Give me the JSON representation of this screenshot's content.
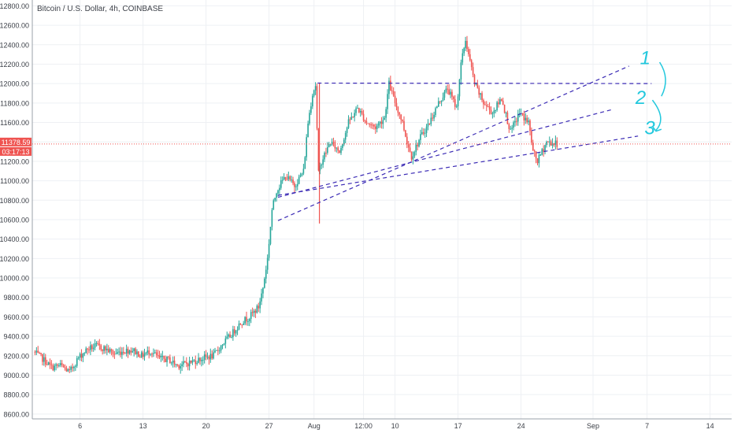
{
  "chart_data": {
    "type": "candlestick",
    "title": "Bitcoin / U.S. Dollar, 4h, COINBASE",
    "price_axis": {
      "ylim": [
        8550,
        12860
      ],
      "ticks": [
        "8600.00",
        "8800.00",
        "9000.00",
        "9200.00",
        "9400.00",
        "9600.00",
        "9800.00",
        "10000.00",
        "10200.00",
        "10400.00",
        "10600.00",
        "10800.00",
        "11000.00",
        "11200.00",
        "11400.00",
        "11600.00",
        "11800.00",
        "12000.00",
        "12200.00",
        "12400.00",
        "12600.00",
        "12800.00"
      ],
      "current_price": "11378.59",
      "countdown": "03:17:13"
    },
    "time_axis": {
      "ticks": [
        {
          "label": "6",
          "day": 6
        },
        {
          "label": "13",
          "day": 13
        },
        {
          "label": "20",
          "day": 20
        },
        {
          "label": "27",
          "day": 27
        },
        {
          "label": "Aug",
          "day": 32
        },
        {
          "label": "12:00",
          "day": 37.5
        },
        {
          "label": "10",
          "day": 41
        },
        {
          "label": "17",
          "day": 48
        },
        {
          "label": "24",
          "day": 55
        },
        {
          "label": "Sep",
          "day": 63
        },
        {
          "label": "7",
          "day": 69
        },
        {
          "label": "14",
          "day": 76
        }
      ],
      "xlim_days": [
        0.7,
        78.4
      ]
    },
    "price_path": [
      [
        1,
        9240
      ],
      [
        2,
        9170
      ],
      [
        3,
        9080
      ],
      [
        4,
        9100
      ],
      [
        5,
        9030
      ],
      [
        6,
        9180
      ],
      [
        7,
        9270
      ],
      [
        8,
        9300
      ],
      [
        9,
        9270
      ],
      [
        10,
        9220
      ],
      [
        11,
        9250
      ],
      [
        12,
        9260
      ],
      [
        13,
        9200
      ],
      [
        14,
        9250
      ],
      [
        15,
        9170
      ],
      [
        16,
        9160
      ],
      [
        17,
        9100
      ],
      [
        18,
        9120
      ],
      [
        19,
        9150
      ],
      [
        20,
        9180
      ],
      [
        21,
        9200
      ],
      [
        22,
        9320
      ],
      [
        23,
        9420
      ],
      [
        24,
        9540
      ],
      [
        25,
        9600
      ],
      [
        26,
        9700
      ],
      [
        26.5,
        9900
      ],
      [
        27,
        10200
      ],
      [
        27.5,
        10700
      ],
      [
        28,
        10900
      ],
      [
        29,
        11050
      ],
      [
        30,
        10950
      ],
      [
        31,
        11100
      ],
      [
        31.5,
        11600
      ],
      [
        32,
        11900
      ],
      [
        32.4,
        12000
      ],
      [
        32.6,
        11050
      ],
      [
        33,
        11200
      ],
      [
        34,
        11400
      ],
      [
        35,
        11300
      ],
      [
        36,
        11600
      ],
      [
        37,
        11750
      ],
      [
        38,
        11600
      ],
      [
        39,
        11550
      ],
      [
        40,
        11650
      ],
      [
        40.5,
        12000
      ],
      [
        41,
        11850
      ],
      [
        42,
        11600
      ],
      [
        42.5,
        11400
      ],
      [
        43,
        11250
      ],
      [
        44,
        11450
      ],
      [
        45,
        11600
      ],
      [
        46,
        11800
      ],
      [
        47,
        11950
      ],
      [
        48,
        11750
      ],
      [
        48.5,
        12200
      ],
      [
        49,
        12450
      ],
      [
        50,
        12000
      ],
      [
        51,
        11800
      ],
      [
        52,
        11700
      ],
      [
        53,
        11850
      ],
      [
        54,
        11500
      ],
      [
        55,
        11700
      ],
      [
        56,
        11600
      ],
      [
        56.5,
        11300
      ],
      [
        57,
        11200
      ],
      [
        58,
        11400
      ],
      [
        59,
        11380
      ]
    ],
    "price_line_value": 11378.59,
    "trendlines": [
      {
        "from": [
          32.4,
          12005
        ],
        "to": [
          69.5,
          12000
        ]
      },
      {
        "from": [
          28,
          10590
        ],
        "to": [
          67,
          12180
        ]
      },
      {
        "from": [
          28,
          10830
        ],
        "to": [
          65,
          11730
        ]
      },
      {
        "from": [
          28,
          10850
        ],
        "to": [
          68,
          11460
        ]
      }
    ],
    "annotations": [
      {
        "text": "1",
        "day": 68.8,
        "price": 12200
      },
      {
        "text": "2",
        "day": 68.3,
        "price": 11790
      },
      {
        "text": "3",
        "day": 69.3,
        "price": 11480
      }
    ],
    "colors": {
      "up": "#26a69a",
      "down": "#ef5350",
      "trendline": "#3b2bb5",
      "annotation": "#22c8dd",
      "price_label": "#ef5350",
      "grid": "#eef0f4",
      "axis_text": "#3b3f47"
    }
  }
}
